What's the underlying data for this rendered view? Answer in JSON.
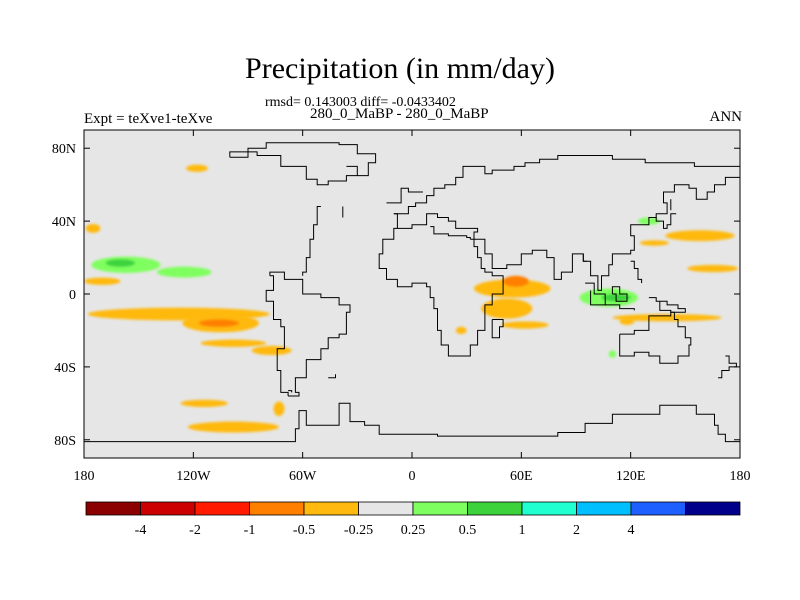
{
  "title": "Precipitation (in mm/day)",
  "stats_line": "rmsd= 0.143003 diff= -0.0433402",
  "subtitle": "280_0_MaBP - 280_0_MaBP",
  "expt_label": "Expt = teXve1-teXve",
  "season_label": "ANN",
  "background_color": "#e6e6e6",
  "chart_data": {
    "type": "heatmap",
    "title": "Precipitation (in mm/day)",
    "projection": "cylindrical-equidistant",
    "xlim": [
      -180,
      180
    ],
    "ylim": [
      -90,
      90
    ],
    "x_ticks": [
      {
        "value": -180,
        "label": "180"
      },
      {
        "value": -120,
        "label": "120W"
      },
      {
        "value": -60,
        "label": "60W"
      },
      {
        "value": 0,
        "label": "0"
      },
      {
        "value": 60,
        "label": "60E"
      },
      {
        "value": 120,
        "label": "120E"
      },
      {
        "value": 180,
        "label": "180"
      }
    ],
    "y_ticks": [
      {
        "value": 80,
        "label": "80N"
      },
      {
        "value": 40,
        "label": "40N"
      },
      {
        "value": 0,
        "label": "0"
      },
      {
        "value": -40,
        "label": "40S"
      },
      {
        "value": -80,
        "label": "80S"
      }
    ],
    "colorbar": {
      "colors": [
        "#8b0000",
        "#cc0000",
        "#ff1a00",
        "#ff7f00",
        "#ffb90f",
        "#e6e6e6",
        "#7fff5f",
        "#3cd23c",
        "#20ffd0",
        "#00bfff",
        "#1e5fff",
        "#00008b"
      ],
      "labels": [
        "-4",
        "-2",
        "-1",
        "-0.5",
        "-0.25",
        "0.25",
        "0.5",
        "1",
        "2",
        "4"
      ]
    },
    "anomalies": [
      {
        "lon": -118,
        "lat": 69,
        "w": 12,
        "h": 4,
        "value": -0.3
      },
      {
        "lon": 158,
        "lat": 32,
        "w": 38,
        "h": 6,
        "value": -0.3
      },
      {
        "lon": 165,
        "lat": 14,
        "w": 28,
        "h": 4,
        "value": -0.3
      },
      {
        "lon": -175,
        "lat": 36,
        "w": 8,
        "h": 5,
        "value": -0.3
      },
      {
        "lon": -157,
        "lat": 16,
        "w": 38,
        "h": 9,
        "value": 0.3
      },
      {
        "lon": -160,
        "lat": 17,
        "w": 16,
        "h": 4,
        "value": 0.7
      },
      {
        "lon": -125,
        "lat": 12,
        "w": 30,
        "h": 6,
        "value": 0.3
      },
      {
        "lon": -170,
        "lat": 7,
        "w": 20,
        "h": 4,
        "value": -0.3
      },
      {
        "lon": -128,
        "lat": -11,
        "w": 100,
        "h": 7,
        "value": -0.3
      },
      {
        "lon": -105,
        "lat": -16,
        "w": 42,
        "h": 10,
        "value": -0.3
      },
      {
        "lon": -106,
        "lat": -16,
        "w": 22,
        "h": 4,
        "value": -0.7
      },
      {
        "lon": -98,
        "lat": -27,
        "w": 36,
        "h": 4,
        "value": -0.3
      },
      {
        "lon": -77,
        "lat": -31,
        "w": 22,
        "h": 5,
        "value": -0.3
      },
      {
        "lon": -114,
        "lat": -60,
        "w": 26,
        "h": 4,
        "value": -0.3
      },
      {
        "lon": -98,
        "lat": -73,
        "w": 50,
        "h": 6,
        "value": -0.3
      },
      {
        "lon": -73,
        "lat": -63,
        "w": 6,
        "h": 8,
        "value": -0.3
      },
      {
        "lon": 55,
        "lat": 3,
        "w": 42,
        "h": 10,
        "value": -0.3
      },
      {
        "lon": 57,
        "lat": 7,
        "w": 14,
        "h": 6,
        "value": -0.7
      },
      {
        "lon": 52,
        "lat": -8,
        "w": 28,
        "h": 11,
        "value": -0.3
      },
      {
        "lon": 62,
        "lat": -17,
        "w": 26,
        "h": 4,
        "value": -0.3
      },
      {
        "lon": 27,
        "lat": -20,
        "w": 6,
        "h": 4,
        "value": -0.3
      },
      {
        "lon": 108,
        "lat": -2,
        "w": 32,
        "h": 10,
        "value": 0.3
      },
      {
        "lon": 112,
        "lat": -2,
        "w": 16,
        "h": 4,
        "value": 0.7
      },
      {
        "lon": 130,
        "lat": 40,
        "w": 12,
        "h": 4,
        "value": 0.3
      },
      {
        "lon": 140,
        "lat": -13,
        "w": 60,
        "h": 4,
        "value": -0.3
      },
      {
        "lon": 133,
        "lat": 28,
        "w": 16,
        "h": 3,
        "value": -0.3
      },
      {
        "lon": 118,
        "lat": -15,
        "w": 8,
        "h": 4,
        "value": -0.3
      },
      {
        "lon": 110,
        "lat": -33,
        "w": 4,
        "h": 4,
        "value": 0.3
      }
    ],
    "coastlines": [
      [
        [
          -180,
          -81
        ],
        [
          -68,
          -81
        ],
        [
          -64,
          -74
        ],
        [
          -62,
          -64
        ],
        [
          -58,
          -72
        ],
        [
          -44,
          -72
        ],
        [
          -40,
          -60
        ],
        [
          -36,
          -60
        ],
        [
          -34,
          -70
        ],
        [
          -26,
          -72
        ],
        [
          -18,
          -77
        ],
        [
          2,
          -77
        ],
        [
          14,
          -78
        ],
        [
          28,
          -78
        ],
        [
          40,
          -78
        ],
        [
          52,
          -78
        ],
        [
          64,
          -78
        ],
        [
          80,
          -76
        ],
        [
          95,
          -71
        ],
        [
          110,
          -66
        ],
        [
          130,
          -66
        ],
        [
          136,
          -61
        ],
        [
          150,
          -61
        ],
        [
          156,
          -66
        ],
        [
          166,
          -72
        ],
        [
          168,
          -77
        ],
        [
          172,
          -81
        ],
        [
          180,
          -81
        ]
      ],
      [
        [
          -100,
          75
        ],
        [
          -90,
          80
        ],
        [
          -80,
          83
        ],
        [
          -60,
          83
        ],
        [
          -40,
          82
        ],
        [
          -30,
          77
        ],
        [
          -20,
          72
        ],
        [
          -24,
          65
        ],
        [
          -36,
          62
        ],
        [
          -46,
          60
        ],
        [
          -52,
          63
        ],
        [
          -58,
          70
        ],
        [
          -72,
          76
        ],
        [
          -85,
          78
        ],
        [
          -100,
          75
        ]
      ],
      [
        [
          -36,
          70
        ],
        [
          -30,
          65
        ]
      ],
      [
        [
          -38,
          48
        ],
        [
          -38,
          42
        ]
      ],
      [
        [
          -50,
          48
        ],
        [
          -52,
          38
        ],
        [
          -54,
          30
        ],
        [
          -56,
          20
        ],
        [
          -58,
          12
        ],
        [
          -60,
          10
        ]
      ],
      [
        [
          -78,
          10
        ],
        [
          -76,
          2
        ],
        [
          -80,
          -4
        ],
        [
          -76,
          -14
        ],
        [
          -72,
          -18
        ],
        [
          -70,
          -30
        ],
        [
          -74,
          -42
        ],
        [
          -72,
          -54
        ],
        [
          -68,
          -56
        ]
      ],
      [
        [
          -68,
          -56
        ],
        [
          -62,
          -54
        ],
        [
          -64,
          -46
        ],
        [
          -58,
          -36
        ],
        [
          -50,
          -30
        ],
        [
          -46,
          -24
        ],
        [
          -40,
          -22
        ],
        [
          -36,
          -10
        ],
        [
          -34,
          -6
        ],
        [
          -40,
          -2
        ],
        [
          -50,
          0
        ],
        [
          -60,
          8
        ],
        [
          -70,
          12
        ],
        [
          -78,
          10
        ]
      ],
      [
        [
          -46,
          -46
        ],
        [
          -42,
          -44
        ]
      ],
      [
        [
          -14,
          50
        ],
        [
          -6,
          58
        ],
        [
          -2,
          56
        ],
        [
          6,
          56
        ]
      ],
      [
        [
          -10,
          44
        ],
        [
          -2,
          48
        ],
        [
          2,
          50
        ],
        [
          8,
          54
        ],
        [
          12,
          58
        ],
        [
          18,
          60
        ],
        [
          24,
          64
        ],
        [
          28,
          70
        ],
        [
          34,
          70
        ],
        [
          40,
          66
        ],
        [
          44,
          68
        ],
        [
          56,
          70
        ],
        [
          62,
          72
        ],
        [
          70,
          74
        ],
        [
          80,
          76
        ],
        [
          96,
          76
        ],
        [
          110,
          74
        ],
        [
          128,
          72
        ],
        [
          140,
          72
        ],
        [
          155,
          70
        ],
        [
          168,
          70
        ],
        [
          180,
          68
        ]
      ],
      [
        [
          -10,
          44
        ],
        [
          -8,
          36
        ],
        [
          0,
          38
        ],
        [
          8,
          44
        ],
        [
          14,
          42
        ],
        [
          20,
          40
        ],
        [
          24,
          36
        ],
        [
          28,
          36
        ],
        [
          36,
          34
        ],
        [
          34,
          30
        ],
        [
          32,
          30
        ],
        [
          40,
          22
        ],
        [
          44,
          14
        ],
        [
          52,
          16
        ],
        [
          60,
          22
        ],
        [
          66,
          24
        ],
        [
          74,
          20
        ],
        [
          78,
          8
        ],
        [
          82,
          12
        ],
        [
          88,
          22
        ],
        [
          94,
          18
        ],
        [
          98,
          10
        ],
        [
          102,
          2
        ],
        [
          104,
          10
        ],
        [
          108,
          16
        ],
        [
          110,
          22
        ],
        [
          120,
          24
        ],
        [
          122,
          32
        ],
        [
          120,
          38
        ],
        [
          126,
          38
        ],
        [
          130,
          42
        ],
        [
          134,
          44
        ],
        [
          140,
          50
        ],
        [
          138,
          56
        ],
        [
          144,
          60
        ],
        [
          152,
          58
        ],
        [
          156,
          52
        ],
        [
          162,
          56
        ],
        [
          166,
          60
        ],
        [
          172,
          64
        ],
        [
          176,
          64
        ],
        [
          180,
          66
        ]
      ],
      [
        [
          10,
          37
        ],
        [
          12,
          33
        ],
        [
          20,
          32
        ],
        [
          30,
          31
        ],
        [
          32,
          30
        ]
      ],
      [
        [
          -8,
          36
        ],
        [
          -10,
          30
        ],
        [
          -16,
          22
        ],
        [
          -18,
          14
        ],
        [
          -14,
          8
        ],
        [
          -8,
          4
        ],
        [
          0,
          6
        ],
        [
          8,
          4
        ],
        [
          10,
          -2
        ],
        [
          12,
          -8
        ],
        [
          14,
          -20
        ],
        [
          16,
          -28
        ],
        [
          20,
          -34
        ],
        [
          26,
          -34
        ],
        [
          32,
          -28
        ],
        [
          36,
          -20
        ],
        [
          40,
          -14
        ],
        [
          40,
          -6
        ],
        [
          44,
          0
        ],
        [
          50,
          10
        ],
        [
          44,
          12
        ],
        [
          40,
          14
        ],
        [
          38,
          20
        ],
        [
          36,
          26
        ],
        [
          34,
          30
        ]
      ],
      [
        [
          44,
          -14
        ],
        [
          48,
          -14
        ],
        [
          50,
          -18
        ],
        [
          48,
          -24
        ],
        [
          44,
          -24
        ],
        [
          44,
          -14
        ]
      ],
      [
        [
          95,
          6
        ],
        [
          100,
          0
        ],
        [
          106,
          -6
        ],
        [
          102,
          -6
        ],
        [
          98,
          2
        ]
      ],
      [
        [
          110,
          0
        ],
        [
          112,
          -4
        ],
        [
          116,
          -4
        ],
        [
          118,
          0
        ],
        [
          114,
          4
        ],
        [
          110,
          0
        ]
      ],
      [
        [
          106,
          -6
        ],
        [
          114,
          -8
        ],
        [
          122,
          -9
        ]
      ],
      [
        [
          114,
          -22
        ],
        [
          122,
          -20
        ],
        [
          130,
          -12
        ],
        [
          136,
          -12
        ],
        [
          142,
          -10
        ],
        [
          144,
          -14
        ],
        [
          146,
          -18
        ],
        [
          150,
          -24
        ],
        [
          153,
          -28
        ],
        [
          152,
          -34
        ],
        [
          146,
          -38
        ],
        [
          140,
          -38
        ],
        [
          136,
          -34
        ],
        [
          130,
          -32
        ],
        [
          122,
          -34
        ],
        [
          116,
          -34
        ],
        [
          114,
          -28
        ],
        [
          114,
          -22
        ]
      ],
      [
        [
          131,
          42
        ],
        [
          134,
          40
        ],
        [
          138,
          36
        ],
        [
          140,
          38
        ],
        [
          142,
          44
        ],
        [
          145,
          44
        ]
      ],
      [
        [
          142,
          46
        ],
        [
          142,
          52
        ]
      ],
      [
        [
          172,
          -34
        ],
        [
          174,
          -38
        ],
        [
          178,
          -40
        ],
        [
          174,
          -42
        ],
        [
          170,
          -46
        ],
        [
          168,
          -46
        ]
      ],
      [
        [
          120,
          18
        ],
        [
          122,
          14
        ],
        [
          124,
          8
        ],
        [
          126,
          6
        ]
      ],
      [
        [
          130,
          -2
        ],
        [
          134,
          -4
        ],
        [
          140,
          -6
        ],
        [
          146,
          -8
        ],
        [
          150,
          -10
        ],
        [
          142,
          -9
        ],
        [
          136,
          -4
        ]
      ],
      [
        [
          96,
          18
        ],
        [
          94,
          22
        ]
      ],
      [
        [
          -68,
          -53
        ],
        [
          -66,
          -54
        ]
      ]
    ]
  }
}
